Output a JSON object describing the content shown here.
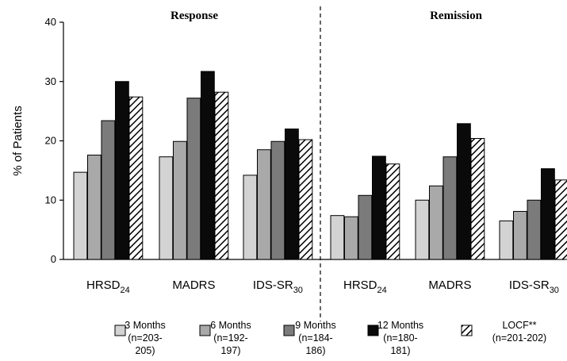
{
  "chart_data": {
    "type": "bar",
    "ylabel": "% of Patients",
    "ylim": [
      0,
      40
    ],
    "yticks": [
      "0",
      "10",
      "20",
      "30",
      "40"
    ],
    "grid": false,
    "legend_position": "bottom",
    "panels": [
      {
        "title": "Response",
        "categories": [
          {
            "main": "HRSD",
            "sub": "24"
          },
          {
            "main": "MADRS",
            "sub": ""
          },
          {
            "main": "IDS-SR",
            "sub": "30"
          }
        ]
      },
      {
        "title": "Remission",
        "categories": [
          {
            "main": "HRSD",
            "sub": "24"
          },
          {
            "main": "MADRS",
            "sub": ""
          },
          {
            "main": "IDS-SR",
            "sub": "30"
          }
        ]
      }
    ],
    "series": [
      {
        "name_lines": [
          "3 Months",
          "(n=203-",
          "205)"
        ],
        "color": "#d3d3d3",
        "pattern": "solid",
        "values": [
          14.7,
          17.3,
          14.2,
          7.4,
          10.0,
          6.5
        ]
      },
      {
        "name_lines": [
          "6 Months",
          "(n=192-",
          "197)"
        ],
        "color": "#a9a9a9",
        "pattern": "solid",
        "values": [
          17.6,
          19.9,
          18.5,
          7.2,
          12.4,
          8.1
        ]
      },
      {
        "name_lines": [
          "9 Months",
          "(n=184-",
          "186)"
        ],
        "color": "#7b7b7b",
        "pattern": "solid",
        "values": [
          23.4,
          27.2,
          19.9,
          10.8,
          17.3,
          10.0
        ]
      },
      {
        "name_lines": [
          "12 Months",
          "(n=180-",
          "181)"
        ],
        "color": "#0a0a0a",
        "pattern": "solid",
        "values": [
          30.0,
          31.7,
          22.0,
          17.4,
          22.9,
          15.3
        ]
      },
      {
        "name_lines": [
          "LOCF**",
          "(n=201-202)"
        ],
        "color": "#ffffff",
        "pattern": "hatch",
        "values": [
          27.4,
          28.2,
          20.2,
          16.1,
          20.4,
          13.4
        ]
      }
    ]
  }
}
